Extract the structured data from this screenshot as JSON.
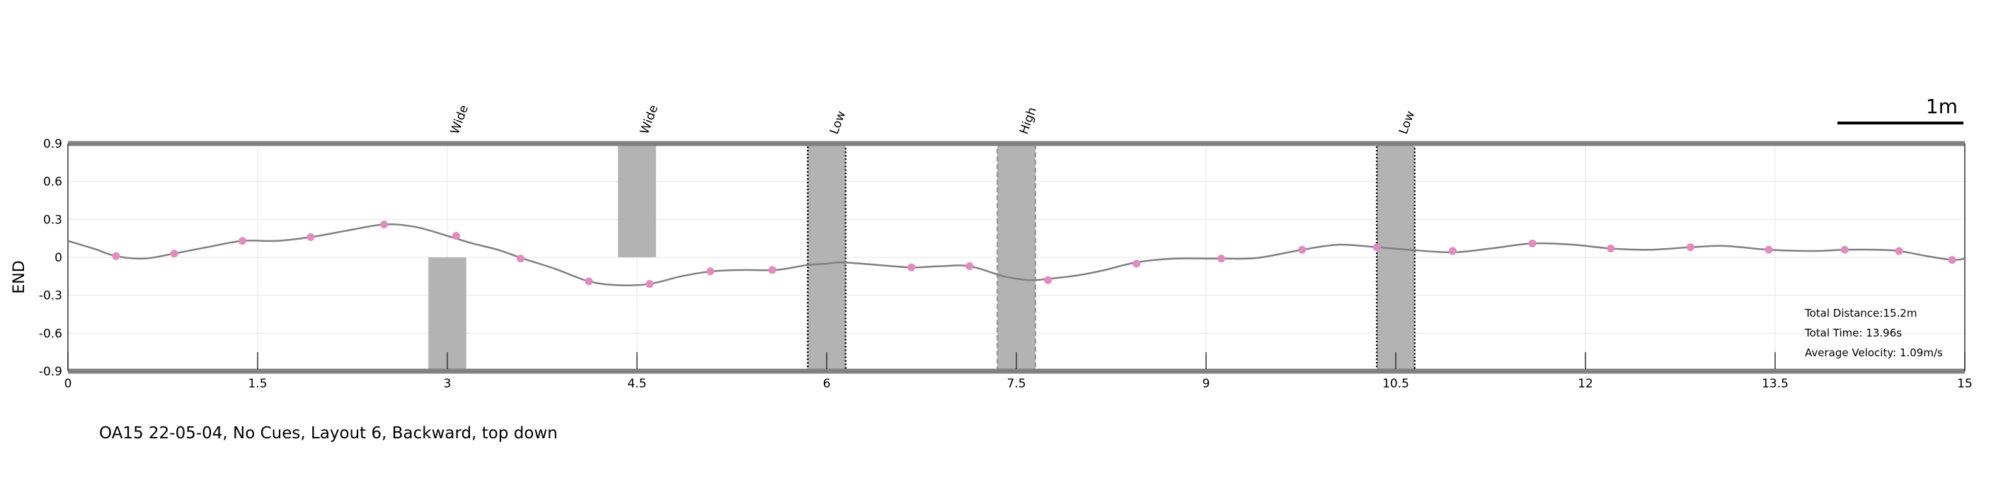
{
  "caption": "OA15 22-05-04, No Cues, Layout 6, Backward, top down",
  "scale_bar": {
    "label": "1m",
    "length_m": 1
  },
  "chart_data": {
    "type": "line",
    "xlabel": "",
    "ylabel": "END",
    "xlim": [
      0,
      15
    ],
    "ylim": [
      -0.9,
      0.9
    ],
    "xticks": [
      0,
      1.5,
      3,
      4.5,
      6,
      7.5,
      9,
      10.5,
      12,
      13.5,
      15
    ],
    "xtick_labels": [
      "0",
      "1.5",
      "3",
      "4.5",
      "6",
      "7.5",
      "9",
      "10.5",
      "12",
      "13.5",
      "15"
    ],
    "yticks": [
      0.9,
      0.6,
      0.3,
      0,
      -0.3,
      -0.6,
      -0.9
    ],
    "ytick_labels": [
      "0.9",
      "0.6",
      "0.3",
      "0",
      "-0.3",
      "-0.6",
      "-0.9"
    ],
    "grid": true,
    "colors": {
      "path": "#808080",
      "marker": "#e08cbf",
      "obstacle": "#b3b3b3",
      "border": "#808080"
    },
    "path": {
      "x": [
        0,
        0.2,
        0.38,
        0.6,
        0.84,
        1.1,
        1.38,
        1.65,
        1.92,
        2.2,
        2.5,
        2.75,
        3.0,
        3.2,
        3.4,
        3.6,
        3.85,
        4.12,
        4.35,
        4.6,
        4.85,
        5.1,
        5.35,
        5.6,
        5.85,
        6.0,
        6.12,
        6.4,
        6.67,
        6.9,
        7.13,
        7.4,
        7.6,
        7.75,
        8.0,
        8.2,
        8.45,
        8.75,
        9.12,
        9.4,
        9.76,
        10.05,
        10.35,
        10.6,
        10.95,
        11.25,
        11.58,
        11.9,
        12.2,
        12.5,
        12.83,
        13.1,
        13.45,
        13.8,
        14.05,
        14.3,
        14.48,
        14.7,
        14.9,
        15.0
      ],
      "y": [
        0.13,
        0.07,
        0.01,
        -0.01,
        0.03,
        0.08,
        0.13,
        0.13,
        0.16,
        0.21,
        0.26,
        0.24,
        0.17,
        0.11,
        0.06,
        -0.01,
        -0.09,
        -0.19,
        -0.22,
        -0.21,
        -0.15,
        -0.11,
        -0.1,
        -0.1,
        -0.06,
        -0.05,
        -0.04,
        -0.06,
        -0.08,
        -0.07,
        -0.07,
        -0.15,
        -0.18,
        -0.17,
        -0.14,
        -0.1,
        -0.04,
        -0.01,
        -0.01,
        -0.005,
        0.06,
        0.1,
        0.08,
        0.06,
        0.04,
        0.07,
        0.11,
        0.1,
        0.07,
        0.06,
        0.08,
        0.09,
        0.06,
        0.05,
        0.06,
        0.06,
        0.05,
        0.01,
        -0.02,
        -0.01
      ]
    },
    "markers": {
      "x": [
        0.38,
        0.84,
        1.38,
        1.92,
        2.5,
        3.07,
        3.58,
        4.12,
        4.6,
        5.08,
        5.57,
        6.67,
        7.13,
        7.75,
        8.45,
        9.12,
        9.76,
        10.35,
        10.95,
        11.58,
        12.2,
        12.83,
        13.45,
        14.05,
        14.48,
        14.9
      ],
      "y": [
        0.01,
        0.03,
        0.13,
        0.16,
        0.26,
        0.17,
        -0.01,
        -0.19,
        -0.21,
        -0.11,
        -0.1,
        -0.08,
        -0.07,
        -0.18,
        -0.05,
        -0.01,
        0.06,
        0.08,
        0.05,
        0.11,
        0.07,
        0.08,
        0.06,
        0.06,
        0.05,
        -0.02
      ]
    },
    "obstacles": [
      {
        "label": "Wide",
        "x0": 2.85,
        "x1": 3.15,
        "y0": -0.9,
        "y1": 0,
        "border": "none"
      },
      {
        "label": "Wide",
        "x0": 4.35,
        "x1": 4.65,
        "y0": 0,
        "y1": 0.9,
        "border": "none"
      },
      {
        "label": "Low",
        "x0": 5.85,
        "x1": 6.15,
        "y0": -0.9,
        "y1": 0.9,
        "border": "dotted"
      },
      {
        "label": "High",
        "x0": 7.35,
        "x1": 7.65,
        "y0": -0.9,
        "y1": 0.9,
        "border": "dashed"
      },
      {
        "label": "Low",
        "x0": 10.35,
        "x1": 10.65,
        "y0": -0.9,
        "y1": 0.9,
        "border": "dotted"
      }
    ],
    "stats": [
      "Total Distance:15.2m",
      "Total Time: 13.96s",
      "Average Velocity: 1.09m/s"
    ]
  }
}
